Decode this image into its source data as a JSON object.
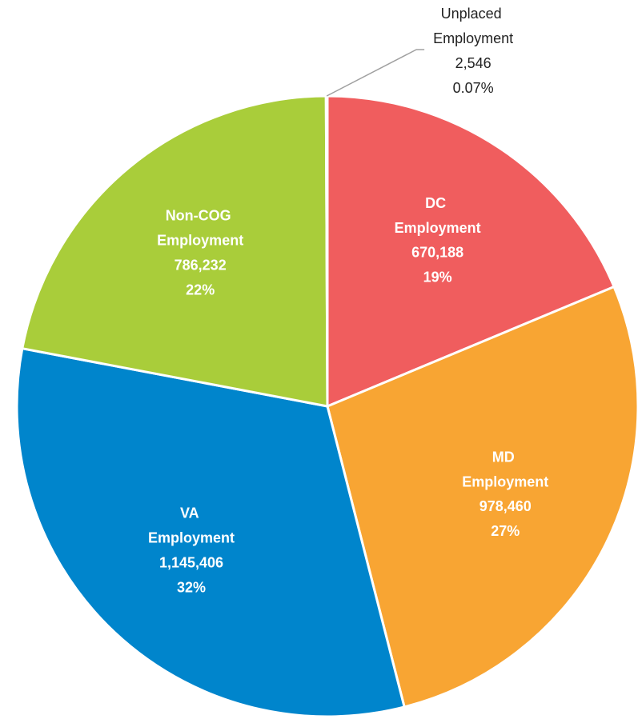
{
  "chart_data": {
    "type": "pie",
    "categories": [
      "DC Employment",
      "MD Employment",
      "VA Employment",
      "Non-COG Employment",
      "Unplaced Employment"
    ],
    "values": [
      670188,
      978460,
      1145406,
      786232,
      2546
    ],
    "value_labels": [
      "670,188",
      "978,460",
      "1,145,406",
      "786,232",
      "2,546"
    ],
    "percent_labels": [
      "19%",
      "27%",
      "32%",
      "22%",
      "0.07%"
    ],
    "colors": [
      "#f05d5e",
      "#f8a533",
      "#0085cc",
      "#a9cd3a",
      "#9e9e9e"
    ]
  }
}
